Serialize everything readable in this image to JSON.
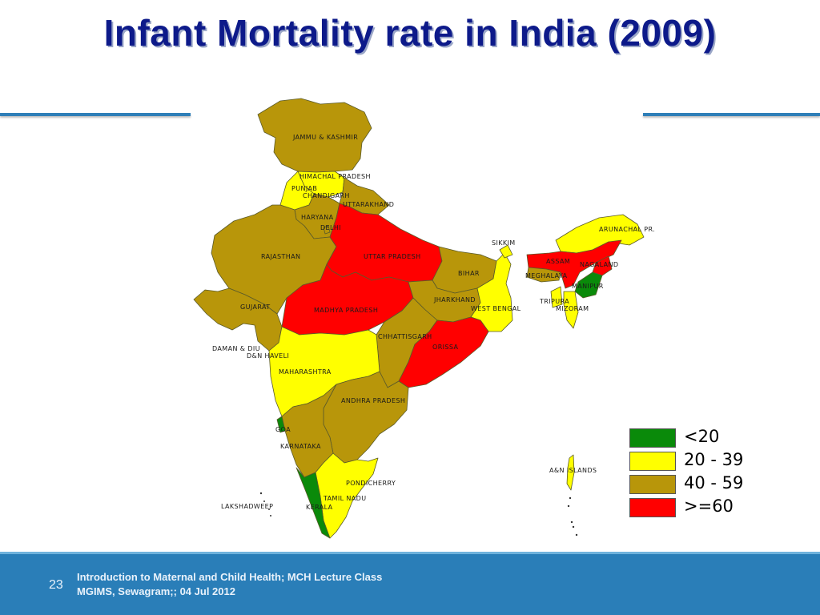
{
  "title": "Infant Mortality rate in India (2009)",
  "map": {
    "colors": {
      "lt20": "#0a8a0a",
      "r20_39": "#ffff00",
      "r40_59": "#b8960a",
      "ge60": "#ff0000",
      "border": "#5a5a2a"
    },
    "labels": {
      "jk": "JAMMU & KASHMIR",
      "hp": "HIMACHAL PRADESH",
      "pb": "PUNJAB",
      "ch": "CHANDIGARH",
      "uk": "UTTARAKHAND",
      "hr": "HARYANA",
      "dl": "DELHI",
      "rj": "RAJASTHAN",
      "up": "UTTAR PRADESH",
      "bh": "BIHAR",
      "sk": "SIKKIM",
      "ar": "ARUNACHAL PR.",
      "as": "ASSAM",
      "ng": "NAGALAND",
      "mg": "MEGHALAYA",
      "mn": "MANIPUR",
      "tr": "TRIPURA",
      "mz": "MIZORAM",
      "jh": "JHARKHAND",
      "wb": "WEST BENGAL",
      "gj": "GUJARAT",
      "mp": "MADHYA PRADESH",
      "cg": "CHHATTISGARH",
      "or": "ORISSA",
      "dd": "DAMAN & DIU",
      "dn": "D&N HAVELI",
      "mh": "MAHARASHTRA",
      "ap": "ANDHRA PRADESH",
      "ga": "GOA",
      "ka": "KARNATAKA",
      "an": "A&N ISLANDS",
      "py": "PONDICHERRY",
      "tn": "TAMIL NADU",
      "ld": "LAKSHADWEEP",
      "kl": "KERALA"
    }
  },
  "legend": [
    {
      "label": "<20",
      "color": "#0a8a0a"
    },
    {
      "label": "20 - 39",
      "color": "#ffff00"
    },
    {
      "label": "40 - 59",
      "color": "#b8960a"
    },
    {
      "label": ">=60",
      "color": "#ff0000"
    }
  ],
  "footer": {
    "page_number": "23",
    "line1": "Introduction to Maternal and Child Health; MCH Lecture Class",
    "line2": "MGIMS, Sewagram;; 04 Jul  2012"
  }
}
